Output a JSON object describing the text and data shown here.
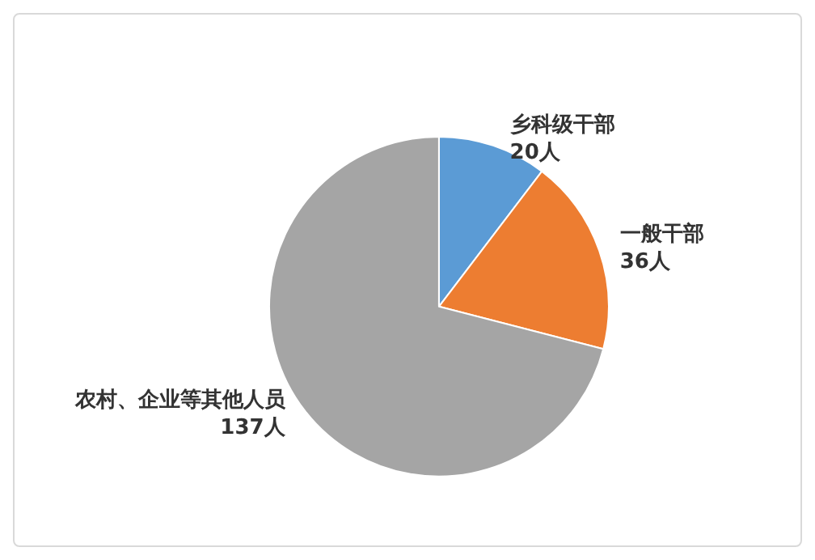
{
  "chart_data": {
    "type": "pie",
    "categories": [
      "乡科级干部",
      "一般干部",
      "农村、企业等其他人员"
    ],
    "values": [
      20,
      36,
      137
    ],
    "value_labels": [
      "20人",
      "36人",
      "137人"
    ],
    "colors": [
      "#5b9bd5",
      "#ed7d31",
      "#a5a5a5"
    ],
    "legend": false
  }
}
